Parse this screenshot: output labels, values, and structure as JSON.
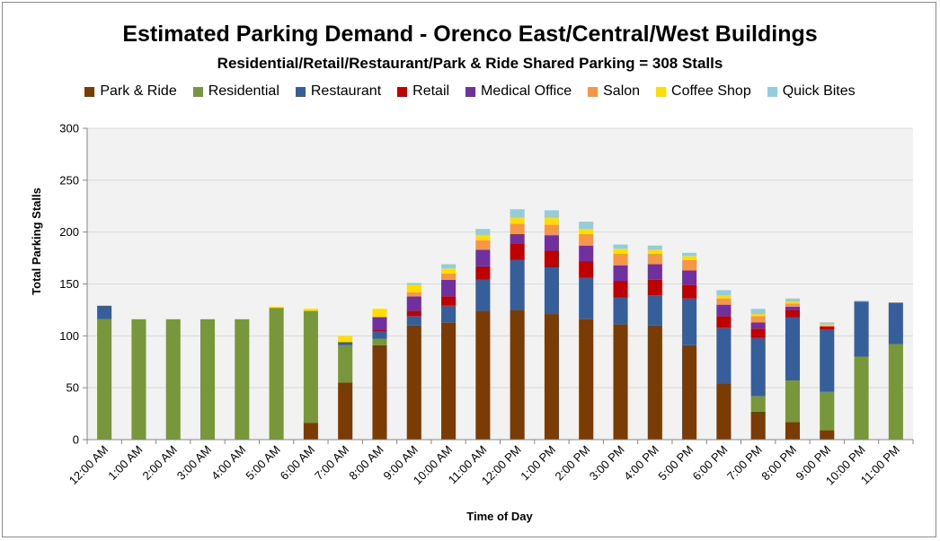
{
  "chart_data": {
    "type": "bar",
    "stacked": true,
    "title": "Estimated Parking Demand - Orenco East/Central/West Buildings",
    "subtitle": "Residential/Retail/Restaurant/Park & Ride Shared Parking = 308 Stalls",
    "xlabel": "Time of Day",
    "ylabel": "Total Parking Stalls",
    "ylim": [
      0,
      300
    ],
    "yticks": [
      0,
      50,
      100,
      150,
      200,
      250,
      300
    ],
    "grid": true,
    "legend_position": "top",
    "categories": [
      "12:00 AM",
      "1:00 AM",
      "2:00 AM",
      "3:00 AM",
      "4:00 AM",
      "5:00 AM",
      "6:00 AM",
      "7:00 AM",
      "8:00 AM",
      "9:00 AM",
      "10:00 AM",
      "11:00 AM",
      "12:00 PM",
      "1:00 PM",
      "2:00 PM",
      "3:00 PM",
      "4:00 PM",
      "5:00 PM",
      "6:00 PM",
      "7:00 PM",
      "8:00 PM",
      "9:00 PM",
      "10:00 PM",
      "11:00 PM"
    ],
    "series": [
      {
        "name": "Park & Ride",
        "color": "#7a3c04",
        "values": [
          0,
          0,
          0,
          0,
          0,
          0,
          16,
          55,
          91,
          110,
          113,
          124,
          125,
          121,
          116,
          111,
          110,
          91,
          54,
          27,
          17,
          9,
          0,
          0
        ]
      },
      {
        "name": "Residential",
        "color": "#77973a",
        "values": [
          116,
          116,
          116,
          116,
          116,
          127,
          108,
          36,
          6,
          0,
          0,
          0,
          0,
          0,
          0,
          0,
          0,
          0,
          0,
          15,
          40,
          37,
          80,
          92
        ]
      },
      {
        "name": "Restaurant",
        "color": "#355e9a",
        "values": [
          13,
          0,
          0,
          0,
          0,
          0,
          0,
          3,
          7,
          9,
          16,
          30,
          48,
          45,
          40,
          26,
          29,
          45,
          54,
          56,
          61,
          60,
          53,
          40
        ]
      },
      {
        "name": "Retail",
        "color": "#c00000",
        "values": [
          0,
          0,
          0,
          0,
          0,
          0,
          0,
          0,
          2,
          5,
          9,
          13,
          16,
          16,
          16,
          16,
          15,
          13,
          11,
          9,
          7,
          3,
          0,
          0
        ]
      },
      {
        "name": "Medical Office",
        "color": "#7030a0",
        "values": [
          0,
          0,
          0,
          0,
          0,
          0,
          0,
          0,
          12,
          14,
          16,
          16,
          9,
          15,
          15,
          15,
          15,
          14,
          11,
          6,
          3,
          0,
          0,
          0
        ]
      },
      {
        "name": "Salon",
        "color": "#f79646",
        "values": [
          0,
          0,
          0,
          0,
          0,
          0,
          0,
          0,
          0,
          4,
          6,
          9,
          10,
          10,
          11,
          11,
          10,
          10,
          6,
          6,
          3,
          1,
          0,
          0
        ]
      },
      {
        "name": "Coffee Shop",
        "color": "#ffdd00",
        "values": [
          0,
          0,
          0,
          0,
          0,
          1,
          2,
          6,
          8,
          7,
          5,
          5,
          6,
          7,
          5,
          5,
          4,
          4,
          3,
          2,
          2,
          1,
          0,
          0
        ]
      },
      {
        "name": "Quick Bites",
        "color": "#93cddd",
        "values": [
          0,
          0,
          0,
          0,
          0,
          0,
          0,
          0,
          0,
          2,
          4,
          6,
          8,
          7,
          7,
          4,
          4,
          3,
          5,
          5,
          3,
          2,
          1,
          0
        ]
      }
    ]
  }
}
